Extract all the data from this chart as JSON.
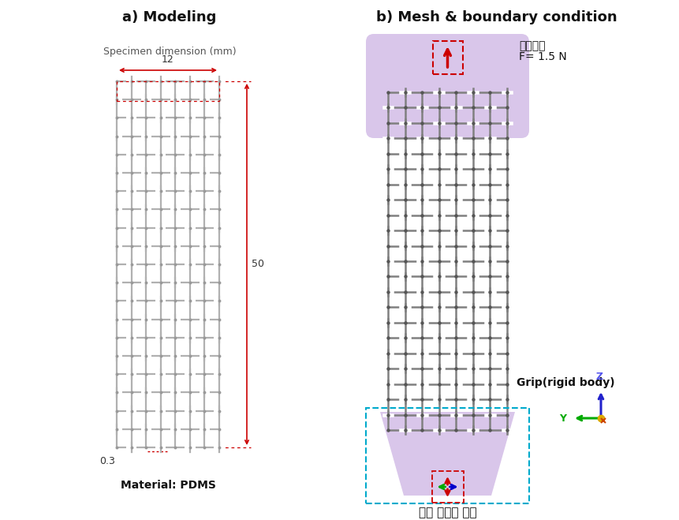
{
  "bg_color": "#ffffff",
  "title_a": "a) Modeling",
  "title_b": "b) Mesh & boundary condition",
  "subtitle_a": "Specimen dimension (mm)",
  "material_label": "Material: PDMS",
  "dim_width": "12",
  "dim_height": "50",
  "dim_thickness": "0.3",
  "label_danch": "단축인장",
  "label_force": "F= 1.5 N",
  "label_grip": "Grip(rigid body)",
  "label_constraint": "모든 자유도 구속",
  "grid_color_a": "#b0b0b0",
  "grid_color_b": "#808080",
  "purple_color": "#c0a0dc",
  "purple_alpha": 0.6,
  "red_color": "#cc0000",
  "cyan_color": "#00aacc",
  "n_cols_a": 7,
  "n_rows_a": 20,
  "n_cols_b": 7,
  "n_rows_b": 22
}
